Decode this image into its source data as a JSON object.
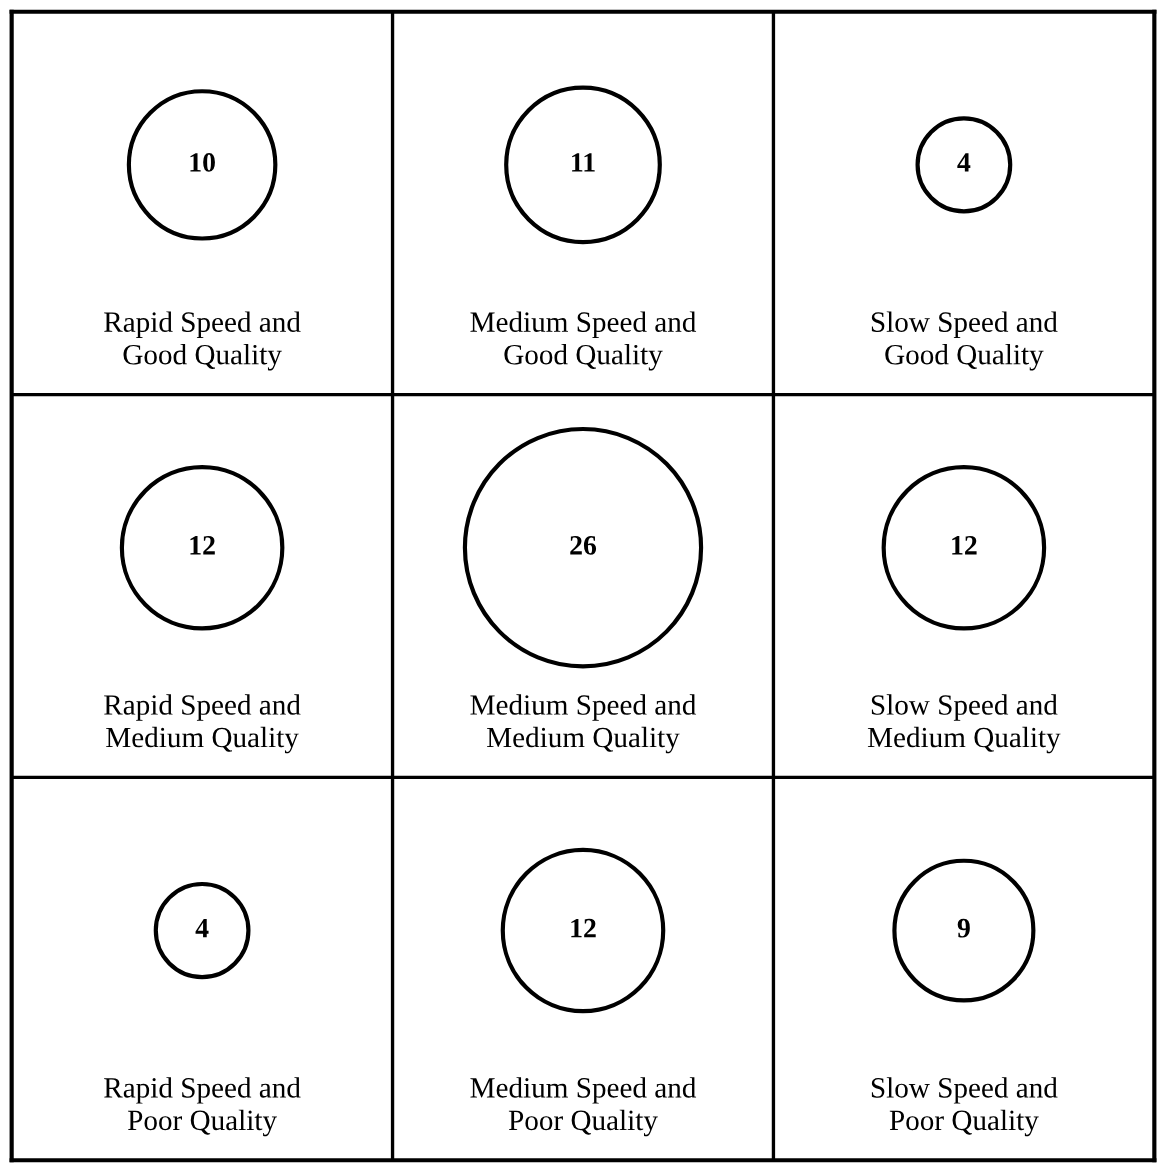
{
  "chart_data": {
    "type": "other",
    "categories": [
      "Rapid Speed and\nGood Quality",
      "Medium Speed and\nGood Quality",
      "Slow Speed and\nGood Quality",
      "Rapid Speed and\nMedium Quality",
      "Medium Speed and\nMedium Quality",
      "Slow Speed and\nMedium Quality",
      "Rapid Speed and\nPoor Quality",
      "Medium Speed and\nPoor Quality",
      "Slow Speed and\nPoor Quality"
    ],
    "values": [
      10,
      11,
      4,
      12,
      26,
      12,
      4,
      12,
      9
    ],
    "data_labels": true
  }
}
